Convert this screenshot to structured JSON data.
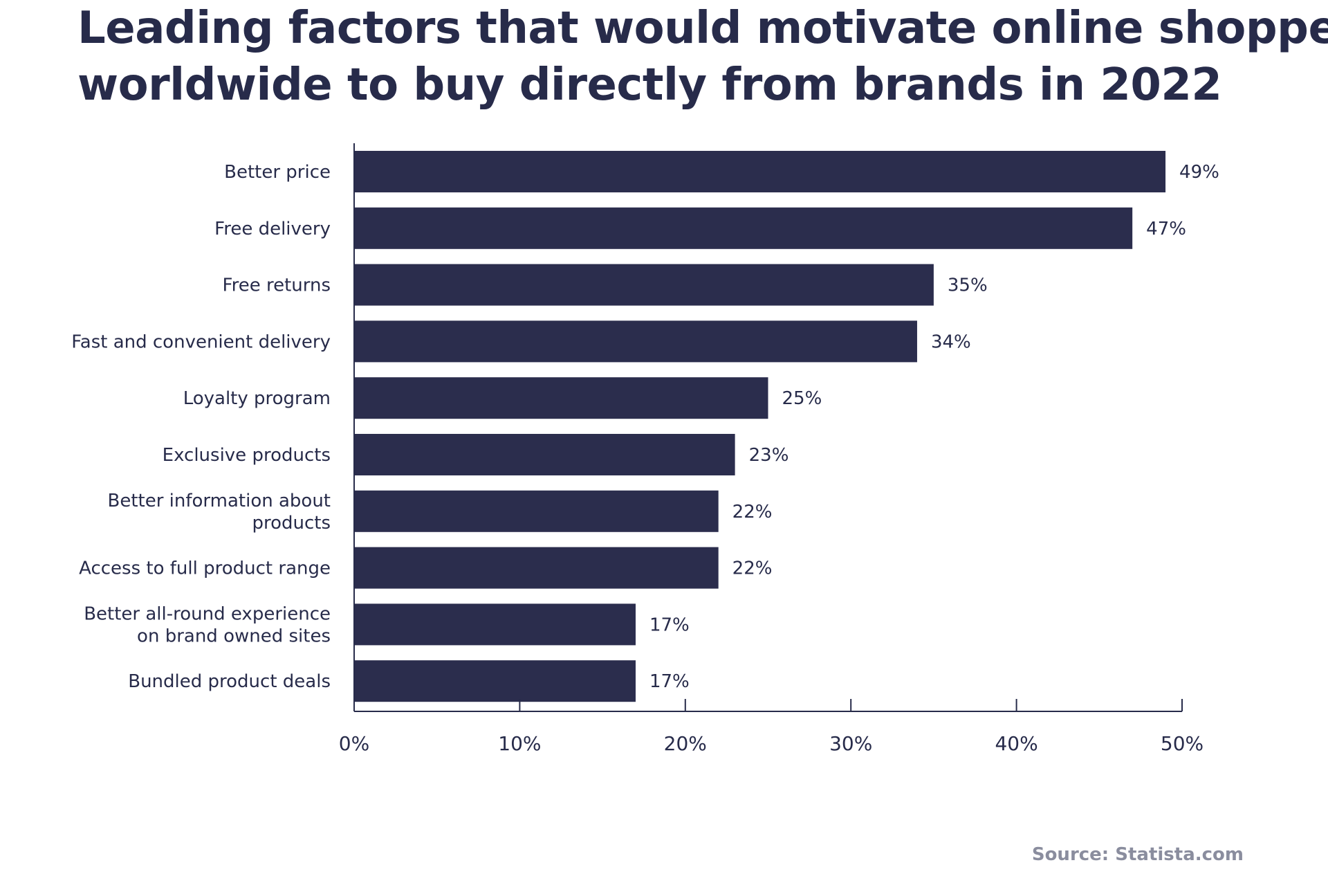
{
  "chart_data": {
    "type": "bar",
    "orientation": "horizontal",
    "title_lines": [
      "Leading factors that would motivate online shoppers",
      "worldwide to buy directly from brands in 2022"
    ],
    "categories": [
      [
        "Better price"
      ],
      [
        "Free delivery"
      ],
      [
        "Free returns"
      ],
      [
        "Fast and convenient delivery"
      ],
      [
        "Loyalty program"
      ],
      [
        "Exclusive products"
      ],
      [
        "Better information about",
        "products"
      ],
      [
        "Access to full product range"
      ],
      [
        "Better all-round experience",
        "on brand owned sites"
      ],
      [
        "Bundled product deals"
      ]
    ],
    "values": [
      49,
      47,
      35,
      34,
      25,
      23,
      22,
      22,
      17,
      17
    ],
    "value_labels": [
      "49%",
      "47%",
      "35%",
      "34%",
      "25%",
      "23%",
      "22%",
      "22%",
      "17%",
      "17%"
    ],
    "xlim": [
      0,
      50
    ],
    "x_ticks": [
      0,
      10,
      20,
      30,
      40,
      50
    ],
    "x_tick_labels": [
      "0%",
      "10%",
      "20%",
      "30%",
      "40%",
      "50%"
    ],
    "xlabel": "",
    "ylabel": "",
    "grid": false,
    "bar_color": "#2b2d4d",
    "axis_color": "#272b4a"
  },
  "source": "Source: Statista.com"
}
